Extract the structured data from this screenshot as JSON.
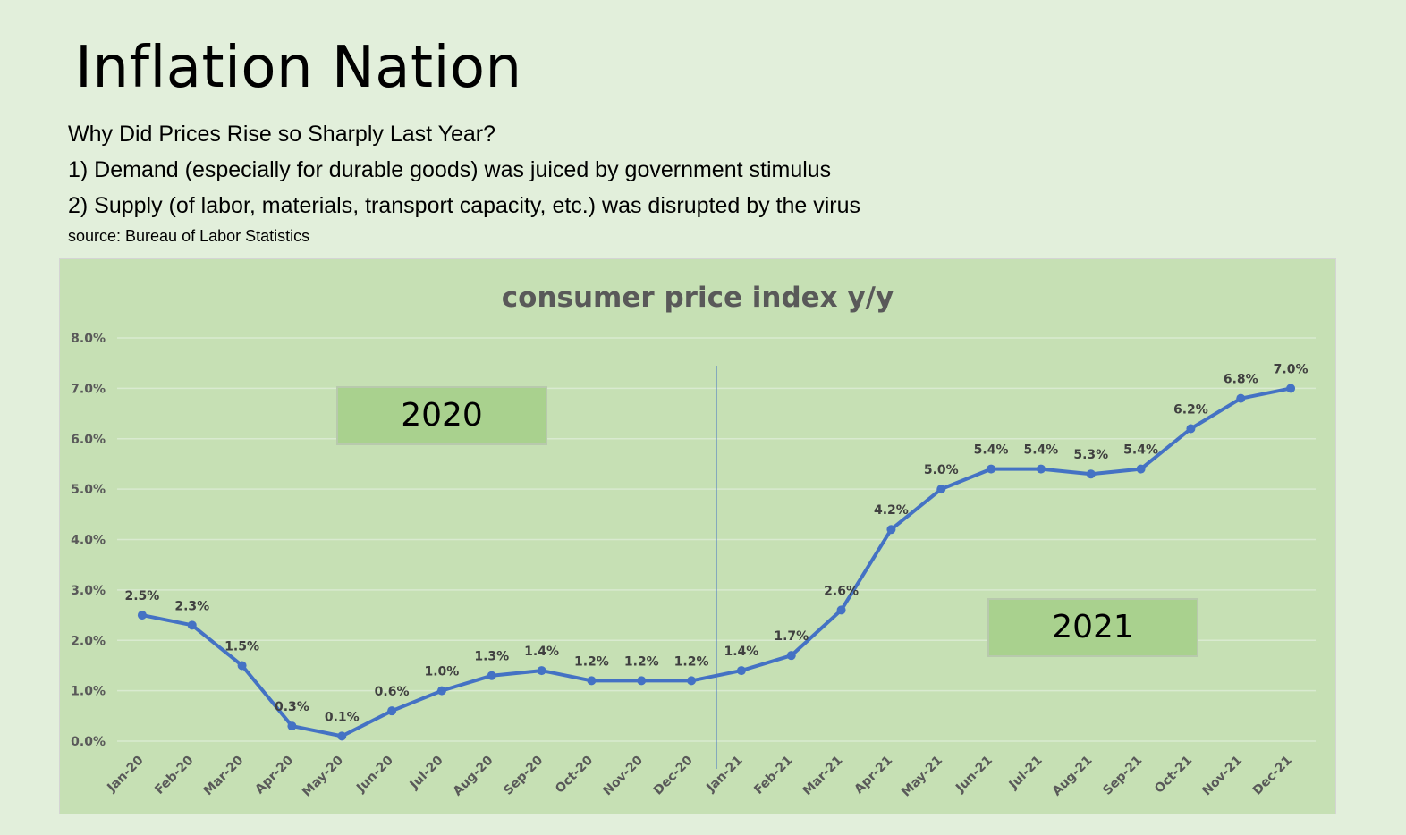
{
  "header": {
    "title": "Inflation Nation",
    "question": "Why Did Prices Rise so Sharply Last Year?",
    "point1": "1) Demand (especially for durable goods) was juiced by government stimulus",
    "point2": "2) Supply (of labor, materials, transport capacity, etc.) was disrupted by the virus",
    "source": "source: Bureau of Labor Statistics"
  },
  "chart_data": {
    "type": "line",
    "title": "consumer price index y/y",
    "xlabel": "",
    "ylabel": "",
    "categories": [
      "Jan-20",
      "Feb-20",
      "Mar-20",
      "Apr-20",
      "May-20",
      "Jun-20",
      "Jul-20",
      "Aug-20",
      "Sep-20",
      "Oct-20",
      "Nov-20",
      "Dec-20",
      "Jan-21",
      "Feb-21",
      "Mar-21",
      "Apr-21",
      "May-21",
      "Jun-21",
      "Jul-21",
      "Aug-21",
      "Sep-21",
      "Oct-21",
      "Nov-21",
      "Dec-21"
    ],
    "series": [
      {
        "values": [
          2.5,
          2.3,
          1.5,
          0.3,
          0.1,
          0.6,
          1.0,
          1.3,
          1.4,
          1.2,
          1.2,
          1.2,
          1.4,
          1.7,
          2.6,
          4.2,
          5.0,
          5.4,
          5.4,
          5.3,
          5.4,
          6.2,
          6.8,
          7.0
        ]
      }
    ],
    "data_labels": [
      "2.5%",
      "2.3%",
      "1.5%",
      "0.3%",
      "0.1%",
      "0.6%",
      "1.0%",
      "1.3%",
      "1.4%",
      "1.2%",
      "1.2%",
      "1.2%",
      "1.4%",
      "1.7%",
      "2.6%",
      "4.2%",
      "5.0%",
      "5.4%",
      "5.4%",
      "5.3%",
      "5.4%",
      "6.2%",
      "6.8%",
      "7.0%"
    ],
    "ylim": [
      0,
      8
    ],
    "yticks": [
      "0.0%",
      "1.0%",
      "2.0%",
      "3.0%",
      "4.0%",
      "5.0%",
      "6.0%",
      "7.0%",
      "8.0%"
    ],
    "grid": true,
    "legend": "none",
    "annotations": [
      "2020",
      "2021"
    ],
    "colors": {
      "line": "#4472c4",
      "divider": "#4472c4",
      "plot_bg": "#c6e0b4",
      "label_box": "#a9d18e",
      "title": "#595959",
      "tick": "#595959",
      "grid": "#d9ead0"
    }
  }
}
